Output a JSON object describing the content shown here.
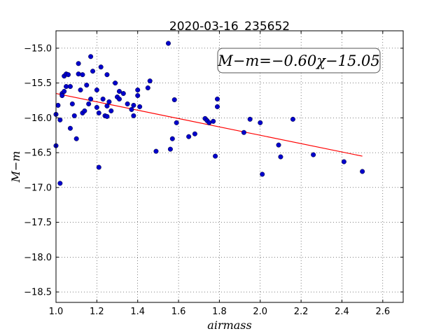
{
  "chart_data": {
    "type": "scatter",
    "title": "2020-03-16_235652",
    "xlabel": "airmass",
    "ylabel": "M−m",
    "xlim": [
      1.0,
      2.7
    ],
    "ylim": [
      -18.65,
      -14.75
    ],
    "x_ticks": [
      1.0,
      1.2,
      1.4,
      1.6,
      1.8,
      2.0,
      2.2,
      2.4,
      2.6
    ],
    "x_tick_labels": [
      "1.0",
      "1.2",
      "1.4",
      "1.6",
      "1.8",
      "2.0",
      "2.2",
      "2.4",
      "2.6"
    ],
    "y_ticks": [
      -15.0,
      -15.5,
      -16.0,
      -16.5,
      -17.0,
      -17.5,
      -18.0,
      -18.5
    ],
    "y_tick_labels": [
      "−15.0",
      "−15.5",
      "−16.0",
      "−16.5",
      "−17.0",
      "−17.5",
      "−18.0",
      "−18.5"
    ],
    "grid": true,
    "annotation": "M−m=−0.60χ−15.05",
    "fit_line": {
      "slope": -0.6,
      "intercept": -15.05,
      "x_range": [
        1.0,
        2.5
      ],
      "color": "#ff0000"
    },
    "series": [
      {
        "color": "#0000cc",
        "points": [
          [
            1.0,
            -16.4
          ],
          [
            1.0,
            -15.95
          ],
          [
            1.01,
            -15.82
          ],
          [
            1.02,
            -16.94
          ],
          [
            1.02,
            -16.03
          ],
          [
            1.03,
            -15.65
          ],
          [
            1.03,
            -15.68
          ],
          [
            1.04,
            -15.62
          ],
          [
            1.04,
            -15.4
          ],
          [
            1.05,
            -15.55
          ],
          [
            1.05,
            -15.37
          ],
          [
            1.06,
            -15.38
          ],
          [
            1.07,
            -15.55
          ],
          [
            1.07,
            -16.15
          ],
          [
            1.08,
            -15.8
          ],
          [
            1.09,
            -15.97
          ],
          [
            1.1,
            -16.3
          ],
          [
            1.11,
            -15.22
          ],
          [
            1.11,
            -15.37
          ],
          [
            1.12,
            -15.6
          ],
          [
            1.13,
            -15.38
          ],
          [
            1.13,
            -15.93
          ],
          [
            1.14,
            -15.9
          ],
          [
            1.15,
            -15.53
          ],
          [
            1.16,
            -15.8
          ],
          [
            1.17,
            -15.12
          ],
          [
            1.17,
            -15.73
          ],
          [
            1.18,
            -15.33
          ],
          [
            1.2,
            -15.6
          ],
          [
            1.2,
            -15.85
          ],
          [
            1.21,
            -15.93
          ],
          [
            1.21,
            -16.71
          ],
          [
            1.22,
            -15.27
          ],
          [
            1.23,
            -15.73
          ],
          [
            1.24,
            -15.97
          ],
          [
            1.25,
            -15.38
          ],
          [
            1.25,
            -15.83
          ],
          [
            1.25,
            -15.98
          ],
          [
            1.26,
            -15.77
          ],
          [
            1.27,
            -15.9
          ],
          [
            1.29,
            -15.5
          ],
          [
            1.3,
            -15.7
          ],
          [
            1.31,
            -15.62
          ],
          [
            1.31,
            -15.73
          ],
          [
            1.33,
            -15.65
          ],
          [
            1.35,
            -15.8
          ],
          [
            1.37,
            -15.88
          ],
          [
            1.38,
            -15.82
          ],
          [
            1.38,
            -15.97
          ],
          [
            1.4,
            -15.6
          ],
          [
            1.4,
            -15.68
          ],
          [
            1.41,
            -15.84
          ],
          [
            1.45,
            -15.57
          ],
          [
            1.46,
            -15.47
          ],
          [
            1.49,
            -16.48
          ],
          [
            1.55,
            -14.93
          ],
          [
            1.56,
            -16.45
          ],
          [
            1.57,
            -16.3
          ],
          [
            1.58,
            -15.74
          ],
          [
            1.59,
            -16.07
          ],
          [
            1.65,
            -16.27
          ],
          [
            1.68,
            -16.23
          ],
          [
            1.73,
            -16.01
          ],
          [
            1.74,
            -16.04
          ],
          [
            1.75,
            -16.07
          ],
          [
            1.77,
            -16.05
          ],
          [
            1.78,
            -16.55
          ],
          [
            1.79,
            -15.84
          ],
          [
            1.79,
            -15.73
          ],
          [
            1.92,
            -16.21
          ],
          [
            1.95,
            -16.02
          ],
          [
            2.0,
            -16.07
          ],
          [
            2.01,
            -16.81
          ],
          [
            2.09,
            -16.39
          ],
          [
            2.1,
            -16.56
          ],
          [
            2.16,
            -16.02
          ],
          [
            2.26,
            -16.53
          ],
          [
            2.41,
            -16.63
          ],
          [
            2.5,
            -16.77
          ]
        ]
      }
    ]
  }
}
